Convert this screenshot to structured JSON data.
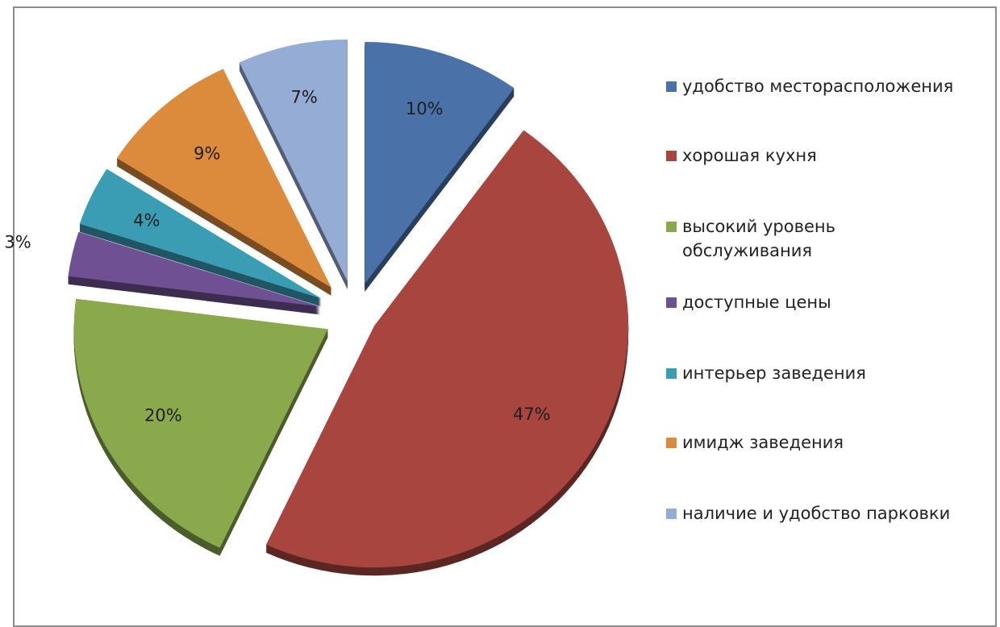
{
  "chart_data": {
    "type": "pie",
    "variant": "exploded-3d",
    "start": "top, clockwise",
    "legend_position": "right",
    "slices": [
      {
        "name": "удобство месторасположения",
        "value": 10,
        "label": "10%",
        "color": "#4a72a8"
      },
      {
        "name": "хорошая кухня",
        "value": 47,
        "label": "47%",
        "color": "#a8453f"
      },
      {
        "name": "высокий уровень обслуживания",
        "value": 20,
        "label": "20%",
        "color": "#89a94c"
      },
      {
        "name": "доступные цены",
        "value": 3,
        "label": "3%",
        "color": "#6f5193"
      },
      {
        "name": "интерьер заведения",
        "value": 4,
        "label": "4%",
        "color": "#3a9db4"
      },
      {
        "name": "имидж заведения",
        "value": 9,
        "label": "9%",
        "color": "#dc8b3d"
      },
      {
        "name": "наличие и удобство парковки",
        "value": 7,
        "label": "7%",
        "color": "#95acd4"
      }
    ]
  }
}
